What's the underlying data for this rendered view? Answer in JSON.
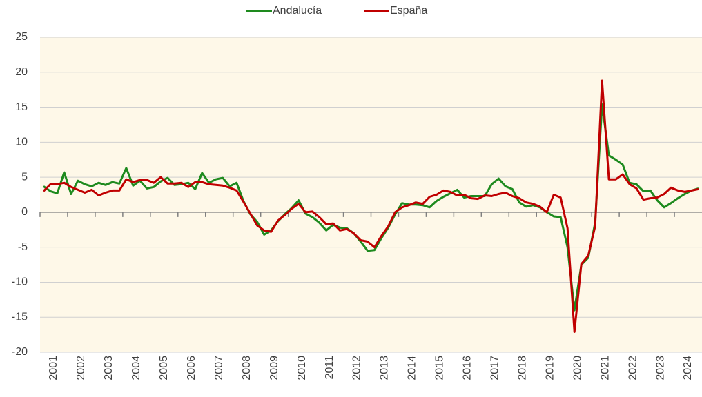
{
  "chart_data": {
    "type": "line",
    "categories": [
      "2001",
      null,
      null,
      null,
      "2002",
      null,
      null,
      null,
      "2003",
      null,
      null,
      null,
      "2004",
      null,
      null,
      null,
      "2005",
      null,
      null,
      null,
      "2006",
      null,
      null,
      null,
      "2007",
      null,
      null,
      null,
      "2008",
      null,
      null,
      null,
      "2009",
      null,
      null,
      null,
      "2010",
      null,
      null,
      null,
      "2011",
      null,
      null,
      null,
      "2012",
      null,
      null,
      null,
      "2013",
      null,
      null,
      null,
      "2014",
      null,
      null,
      null,
      "2015",
      null,
      null,
      null,
      "2016",
      null,
      null,
      null,
      "2017",
      null,
      null,
      null,
      "2018",
      null,
      null,
      null,
      "2019",
      null,
      null,
      null,
      "2020",
      null,
      null,
      null,
      "2021",
      null,
      null,
      null,
      "2022",
      null,
      null,
      null,
      "2023",
      null,
      null,
      null,
      "2024",
      null,
      null,
      null
    ],
    "series": [
      {
        "name": "Andalucía",
        "color": "#1e8a1e",
        "values": [
          3.7,
          3.0,
          2.7,
          5.7,
          2.6,
          4.5,
          4.0,
          3.7,
          4.2,
          3.9,
          4.3,
          4.1,
          6.3,
          3.8,
          4.5,
          3.4,
          3.6,
          4.4,
          4.9,
          3.9,
          4.0,
          4.2,
          3.3,
          5.6,
          4.2,
          4.7,
          4.9,
          3.7,
          4.2,
          1.6,
          -0.3,
          -1.4,
          -3.2,
          -2.6,
          -1.3,
          -0.3,
          0.6,
          1.7,
          -0.2,
          -0.7,
          -1.5,
          -2.6,
          -1.8,
          -2.2,
          -2.3,
          -3.0,
          -4.2,
          -5.5,
          -5.4,
          -3.7,
          -2.2,
          -0.3,
          1.3,
          1.1,
          1.1,
          1.0,
          0.7,
          1.6,
          2.2,
          2.7,
          3.2,
          2.1,
          2.3,
          2.3,
          2.3,
          4.0,
          4.8,
          3.7,
          3.3,
          1.4,
          0.8,
          1.0,
          0.7,
          0.0,
          -0.6,
          -0.7,
          -5.0,
          -14.0,
          -7.5,
          -6.5,
          -1.5,
          15.4,
          8.1,
          7.5,
          6.8,
          4.2,
          4.0,
          3.0,
          3.1,
          1.7,
          0.7,
          1.3,
          2.0,
          2.6,
          3.1,
          3.4
        ]
      },
      {
        "name": "España",
        "color": "#c00000",
        "values": [
          3.0,
          4.0,
          4.0,
          4.2,
          3.6,
          3.2,
          2.8,
          3.2,
          2.4,
          2.8,
          3.1,
          3.1,
          4.7,
          4.3,
          4.6,
          4.6,
          4.2,
          5.0,
          4.1,
          4.1,
          4.2,
          3.6,
          4.3,
          4.3,
          4.0,
          3.9,
          3.8,
          3.5,
          3.1,
          1.5,
          -0.2,
          -1.9,
          -2.6,
          -2.8,
          -1.2,
          -0.4,
          0.5,
          1.2,
          0.0,
          0.1,
          -0.7,
          -1.7,
          -1.6,
          -2.6,
          -2.4,
          -3.0,
          -4.0,
          -4.2,
          -5.0,
          -3.4,
          -2.0,
          0.0,
          0.7,
          1.0,
          1.4,
          1.2,
          2.2,
          2.5,
          3.1,
          2.9,
          2.4,
          2.5,
          2.0,
          1.9,
          2.4,
          2.3,
          2.6,
          2.8,
          2.3,
          2.0,
          1.4,
          1.2,
          0.8,
          0.0,
          2.5,
          2.1,
          -2.3,
          -17.1,
          -7.4,
          -6.2,
          -2.0,
          18.8,
          4.7,
          4.7,
          5.4,
          4.0,
          3.4,
          1.8,
          2.0,
          2.1,
          2.6,
          3.5,
          3.1,
          2.9,
          3.1,
          3.3
        ]
      }
    ],
    "ylim": [
      -20,
      25
    ],
    "yticks": [
      -20,
      -15,
      -10,
      -5,
      0,
      5,
      10,
      15,
      20,
      25
    ],
    "grid": true,
    "legend": "top"
  }
}
